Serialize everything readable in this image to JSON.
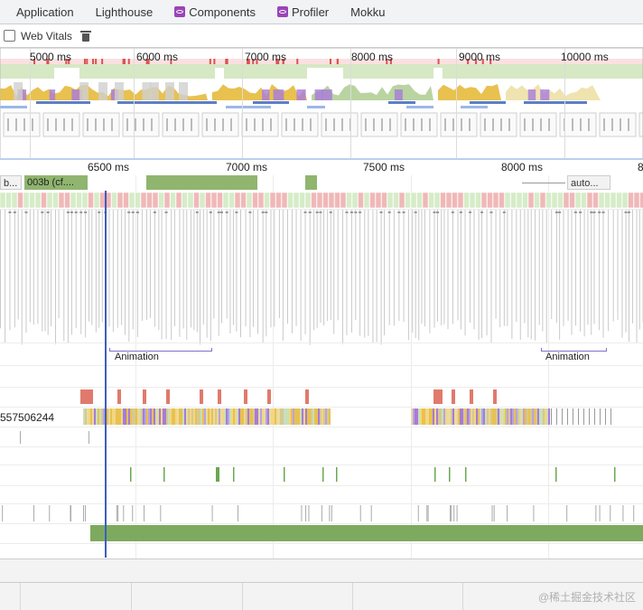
{
  "tabs": [
    {
      "label": "Application",
      "icon": ""
    },
    {
      "label": "Lighthouse",
      "icon": ""
    },
    {
      "label": "Components",
      "icon": "react-icon"
    },
    {
      "label": "Profiler",
      "icon": "react-icon"
    },
    {
      "label": "Mokku",
      "icon": ""
    }
  ],
  "toolbar": {
    "web_vitals_label": "Web Vitals",
    "clear_icon": "trash-icon"
  },
  "overview": {
    "ticks": [
      "5000 ms",
      "6000 ms",
      "7000 ms",
      "8000 ms",
      "9000 ms",
      "10000 ms"
    ]
  },
  "ruler": {
    "ticks": [
      "6500 ms",
      "7000 ms",
      "7500 ms",
      "8000 ms",
      "8"
    ]
  },
  "network": {
    "bars": [
      {
        "label": "b..."
      },
      {
        "label": "003b (cf...."
      },
      {
        "label": ""
      },
      {
        "label": ""
      },
      {
        "label": "auto..."
      }
    ]
  },
  "animations": [
    {
      "label": "Animation"
    },
    {
      "label": "Animation"
    }
  ],
  "thread_id": "557506244",
  "watermark": "@稀土掘金技术社区",
  "colors": {
    "scripting": "#e8c14f",
    "rendering": "#a77bd9",
    "painting": "#8fb56f",
    "idle": "#cfcfcf",
    "red": "#d9534f",
    "frames": "#d6e8c4",
    "accent": "#3e5dbd"
  }
}
